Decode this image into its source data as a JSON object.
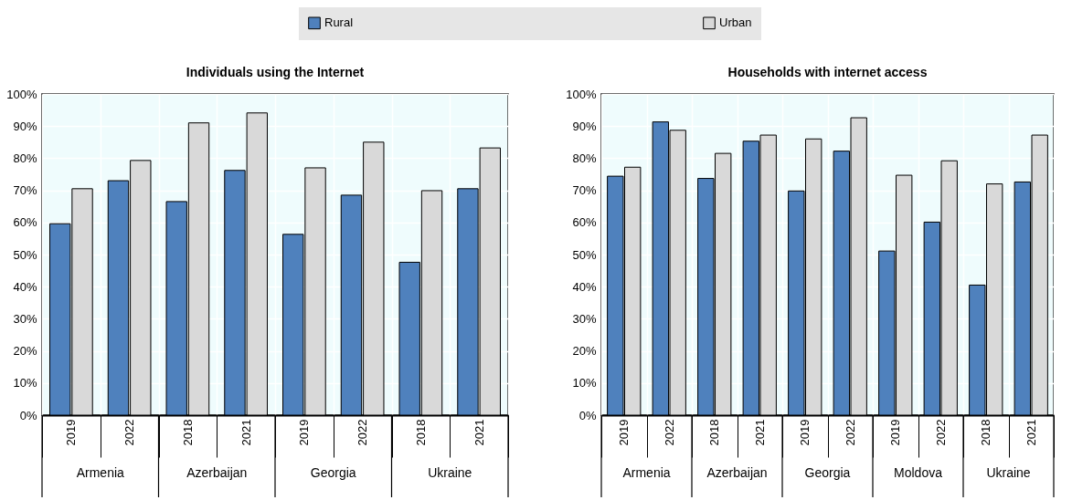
{
  "chart_data": [
    {
      "type": "bar",
      "title": "Individuals using the Internet",
      "categories": [
        "2019",
        "2022",
        "2018",
        "2021",
        "2019",
        "2022",
        "2018",
        "2021"
      ],
      "annotations": [
        "Armenia",
        "Azerbaijan",
        "Georgia",
        "Ukraine"
      ],
      "series": [
        {
          "name": "Rural",
          "color": "#4f81bd",
          "values": [
            59.6,
            73,
            66.5,
            76.2,
            56.3,
            68.5,
            47.6,
            70.5
          ]
        },
        {
          "name": "Urban",
          "color": "#d9d9d9",
          "values": [
            70.5,
            79.3,
            91,
            94.1,
            77,
            85,
            69.9,
            83.2
          ]
        }
      ],
      "ylim": [
        0,
        100
      ],
      "yticks": [
        {
          "value": 0,
          "label": "0%"
        },
        {
          "value": 10,
          "label": "10%"
        },
        {
          "value": 20,
          "label": "20%"
        },
        {
          "value": 30,
          "label": "30%"
        },
        {
          "value": 40,
          "label": "40%"
        },
        {
          "value": 50,
          "label": "50%"
        },
        {
          "value": 60,
          "label": "60%"
        },
        {
          "value": 70,
          "label": "70%"
        },
        {
          "value": 80,
          "label": "80%"
        },
        {
          "value": 90,
          "label": "90%"
        },
        {
          "value": 100,
          "label": "100%"
        }
      ],
      "grid": true,
      "legend": "top"
    },
    {
      "type": "bar",
      "title": "Households with internet access",
      "categories": [
        "2019",
        "2022",
        "2018",
        "2021",
        "2019",
        "2022",
        "2019",
        "2022",
        "2018",
        "2021"
      ],
      "annotations": [
        "Armenia",
        "Azerbaijan",
        "Georgia",
        "Moldova",
        "Ukraine"
      ],
      "series": [
        {
          "name": "Rural",
          "color": "#4f81bd",
          "values": [
            74.4,
            91.3,
            73.7,
            85.3,
            69.8,
            82.2,
            51.1,
            60.1,
            40.5,
            72.6
          ]
        },
        {
          "name": "Urban",
          "color": "#d9d9d9",
          "values": [
            77.2,
            88.7,
            81.5,
            87.2,
            86,
            92.6,
            74.7,
            79.2,
            72,
            87.2
          ]
        }
      ],
      "ylim": [
        0,
        100
      ],
      "yticks": [
        {
          "value": 0,
          "label": "0%"
        },
        {
          "value": 10,
          "label": "10%"
        },
        {
          "value": 20,
          "label": "20%"
        },
        {
          "value": 30,
          "label": "30%"
        },
        {
          "value": 40,
          "label": "40%"
        },
        {
          "value": 50,
          "label": "50%"
        },
        {
          "value": 60,
          "label": "60%"
        },
        {
          "value": 70,
          "label": "70%"
        },
        {
          "value": 80,
          "label": "80%"
        },
        {
          "value": 90,
          "label": "90%"
        },
        {
          "value": 100,
          "label": "100%"
        }
      ],
      "grid": true
    }
  ]
}
